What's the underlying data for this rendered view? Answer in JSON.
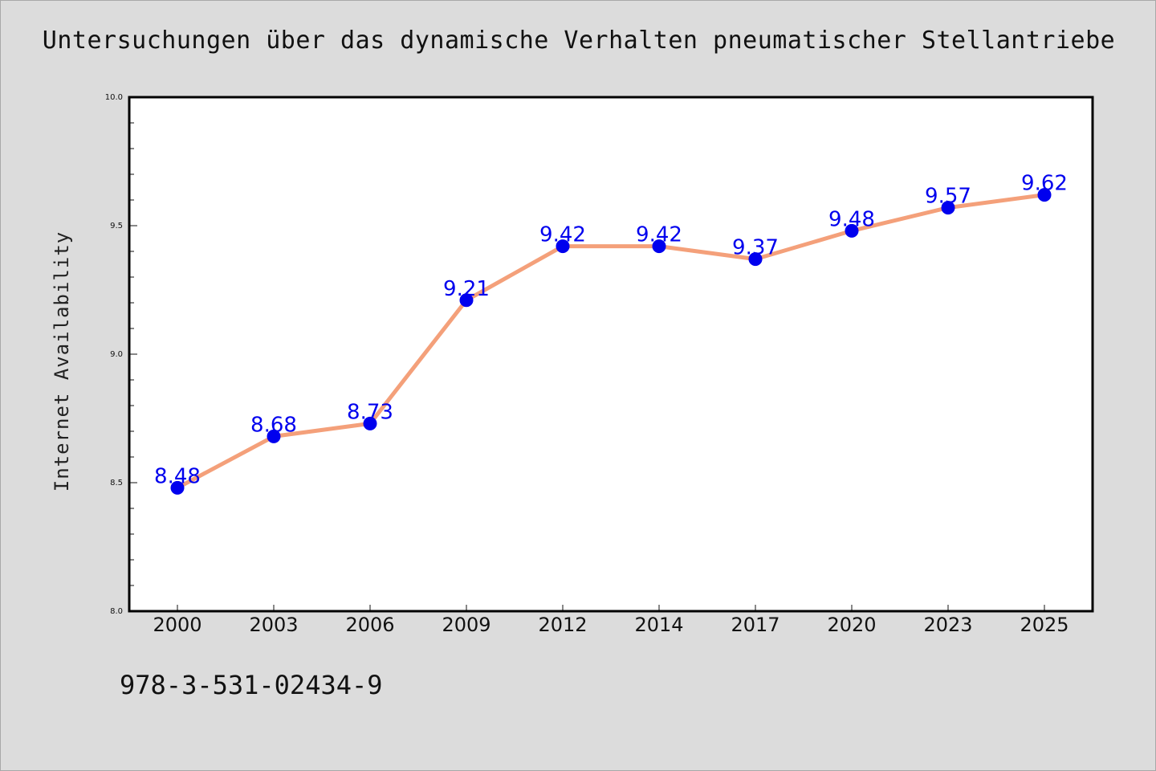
{
  "title": "Untersuchungen über das dynamische Verhalten pneumatischer Stellantriebe",
  "footnote": "978-3-531-02434-9",
  "chart_data": {
    "type": "line",
    "title": "Untersuchungen über das dynamische Verhalten pneumatischer Stellantriebe",
    "xlabel": "",
    "ylabel": "Internet Availability",
    "categories": [
      "2000",
      "2003",
      "2006",
      "2009",
      "2012",
      "2014",
      "2017",
      "2020",
      "2023",
      "2025"
    ],
    "series": [
      {
        "values": [
          8.48,
          8.68,
          8.73,
          9.21,
          9.42,
          9.42,
          9.37,
          9.48,
          9.57,
          9.62
        ]
      }
    ],
    "data_labels": [
      "8.48",
      "8.68",
      "8.73",
      "9.21",
      "9.42",
      "9.42",
      "9.37",
      "9.48",
      "9.57",
      "9.62"
    ],
    "ylim": [
      8.0,
      10.0
    ],
    "yticks": [
      "8.0",
      "8.5",
      "9.0",
      "9.5",
      "10.0"
    ],
    "grid": false,
    "colors": {
      "line": "#f4a07a",
      "marker": "#0000ee",
      "label": "#0000ee",
      "background": "#dcdcdc",
      "plot_area": "#ffffff"
    }
  }
}
